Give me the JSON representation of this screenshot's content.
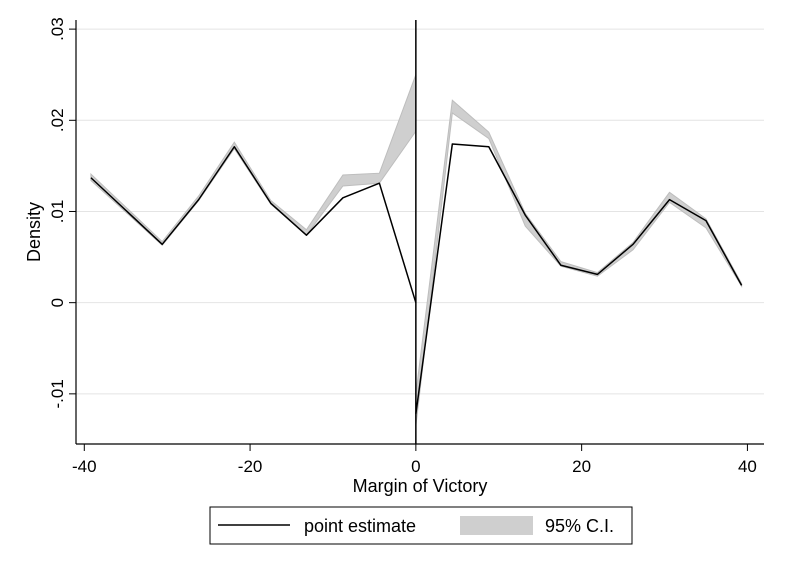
{
  "chart_data": {
    "type": "line",
    "title": "",
    "xlabel": "Margin of Victory",
    "ylabel": "Density",
    "xlim": [
      -41,
      42
    ],
    "ylim": [
      -0.0155,
      0.031
    ],
    "xticks": [
      -40,
      -20,
      0,
      20,
      40
    ],
    "xtick_labels": [
      "-40",
      "-20",
      "0",
      "20",
      "40"
    ],
    "yticks": [
      -0.01,
      0,
      0.01,
      0.02,
      0.03
    ],
    "ytick_labels": [
      "-.01",
      "0",
      ".01",
      ".02",
      ".03"
    ],
    "grid": true,
    "cutoff_line_x": 0,
    "legend": {
      "position": "bottom",
      "entries": [
        "point estimate",
        "95% C.I."
      ]
    },
    "series": [
      {
        "name": "point estimate",
        "segments": [
          {
            "x": [
              -39.2,
              -30.6,
              -26.2,
              -21.9,
              -17.5,
              -13.2,
              -8.8,
              -4.4,
              0
            ],
            "y": [
              0.0137,
              0.0064,
              0.0113,
              0.0171,
              0.0109,
              0.0074,
              0.0115,
              0.0131,
              0.0
            ]
          },
          {
            "x": [
              0,
              4.4,
              8.8,
              13.2,
              17.5,
              21.9,
              26.2,
              30.6,
              35.0,
              39.3
            ],
            "y": [
              -0.0122,
              0.0174,
              0.0171,
              0.0096,
              0.0041,
              0.0031,
              0.0064,
              0.0113,
              0.009,
              0.0019
            ]
          }
        ]
      },
      {
        "name": "95% C.I.",
        "segments": [
          {
            "x": [
              -39.2,
              -30.6,
              -26.2,
              -21.9,
              -17.5,
              -13.2,
              -8.8,
              -4.4,
              0
            ],
            "lower": [
              0.0134,
              0.0063,
              0.0112,
              0.0169,
              0.0108,
              0.0074,
              0.0128,
              0.0131,
              0.0188
            ],
            "upper": [
              0.0141,
              0.0067,
              0.0117,
              0.0176,
              0.0112,
              0.008,
              0.014,
              0.0142,
              0.025
            ]
          },
          {
            "x": [
              0,
              4.4,
              8.8,
              13.2,
              17.5,
              21.9,
              26.2,
              30.6,
              35.0,
              39.3
            ],
            "lower": [
              -0.0135,
              0.0208,
              0.018,
              0.0084,
              0.004,
              0.0029,
              0.0058,
              0.011,
              0.0082,
              0.0018
            ],
            "upper": [
              -0.01,
              0.0222,
              0.0187,
              0.0098,
              0.0045,
              0.0033,
              0.0066,
              0.0121,
              0.0092,
              0.0021
            ]
          }
        ]
      }
    ]
  },
  "colors": {
    "line": "#000000",
    "ci_fill": "#cfcfcf",
    "ci_edge": "#bdbdbd",
    "grid": "#e4e4e4",
    "axis": "#000000"
  }
}
